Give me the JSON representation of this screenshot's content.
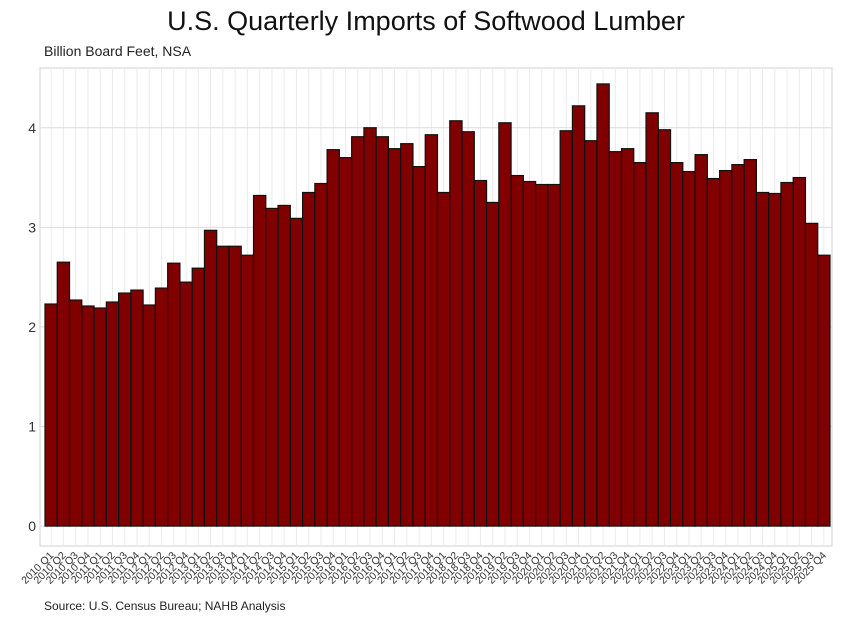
{
  "chart_data": {
    "type": "bar",
    "title": "U.S. Quarterly Imports of Softwood Lumber",
    "subtitle": "Billion Board Feet, NSA",
    "source": "Source: U.S. Census Bureau; NAHB Analysis",
    "xlabel": "",
    "ylabel": "Billion Board Feet",
    "ylim": [
      -0.2,
      4.6
    ],
    "yticks": [
      0,
      1,
      2,
      3,
      4
    ],
    "grid": true,
    "bar_color": "#800000",
    "categories": [
      "2010 Q1",
      "2010 Q2",
      "2010 Q3",
      "2010 Q4",
      "2011 Q1",
      "2011 Q2",
      "2011 Q3",
      "2011 Q4",
      "2012 Q1",
      "2012 Q2",
      "2012 Q3",
      "2012 Q4",
      "2013 Q1",
      "2013 Q2",
      "2013 Q3",
      "2013 Q4",
      "2014 Q1",
      "2014 Q2",
      "2014 Q3",
      "2014 Q4",
      "2015 Q1",
      "2015 Q2",
      "2015 Q3",
      "2015 Q4",
      "2016 Q1",
      "2016 Q2",
      "2016 Q3",
      "2016 Q4",
      "2017 Q1",
      "2017 Q2",
      "2017 Q3",
      "2017 Q4",
      "2018 Q1",
      "2018 Q2",
      "2018 Q3",
      "2018 Q4",
      "2019 Q1",
      "2019 Q2",
      "2019 Q3",
      "2019 Q4",
      "2020 Q1",
      "2020 Q2",
      "2020 Q3",
      "2020 Q4",
      "2021 Q1",
      "2021 Q2",
      "2021 Q3",
      "2021 Q4",
      "2022 Q1",
      "2022 Q2",
      "2022 Q3",
      "2022 Q4",
      "2023 Q1",
      "2023 Q2",
      "2023 Q3",
      "2023 Q4",
      "2024 Q1",
      "2024 Q2",
      "2024 Q3",
      "2024 Q4",
      "2025 Q1",
      "2025 Q2",
      "2025 Q3",
      "2025 Q4"
    ],
    "values": [
      2.23,
      2.65,
      2.27,
      2.21,
      2.19,
      2.25,
      2.34,
      2.37,
      2.22,
      2.39,
      2.64,
      2.45,
      2.59,
      2.97,
      2.81,
      2.81,
      2.72,
      3.32,
      3.19,
      3.22,
      3.09,
      3.35,
      3.44,
      3.78,
      3.7,
      3.91,
      4.0,
      3.91,
      3.79,
      3.84,
      3.61,
      3.93,
      3.35,
      4.07,
      3.96,
      3.47,
      3.25,
      4.05,
      3.52,
      3.46,
      3.43,
      3.43,
      3.97,
      4.22,
      3.87,
      4.44,
      3.76,
      3.79,
      3.65,
      4.15,
      3.98,
      3.65,
      3.56,
      3.73,
      3.49,
      3.57,
      3.63,
      3.68,
      3.35,
      3.34,
      3.45,
      3.5,
      3.04,
      2.72
    ]
  }
}
